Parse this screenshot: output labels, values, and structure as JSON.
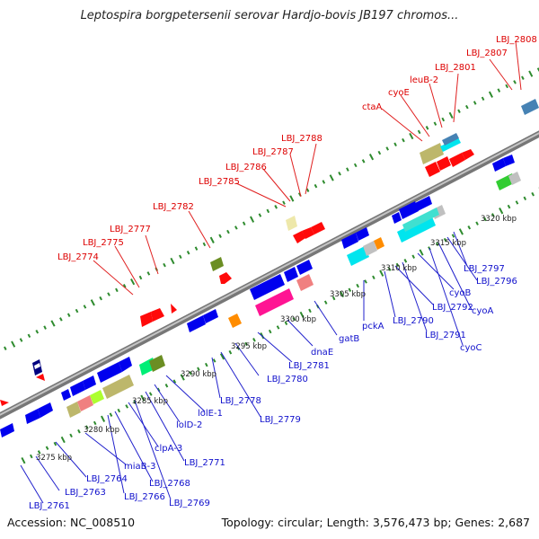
{
  "title": "Leptospira borgpetersenii serovar Hardjo-bovis JB197 chromos...",
  "footer": {
    "accession": "Accession: NC_008510",
    "summary": "Topology: circular; Length: 3,576,473 bp; Genes: 2,687"
  },
  "colors": {
    "forward_label": "#dd0000",
    "reverse_label": "#0000cc",
    "backbone": "#888888",
    "tick": "#2e8b2e"
  },
  "kbp_labels": [
    "3275 kbp",
    "3280 kbp",
    "3285 kbp",
    "3290 kbp",
    "3295 kbp",
    "3300 kbp",
    "3305 kbp",
    "3310 kbp",
    "3315 kbp",
    "3320 kbp"
  ],
  "forward_labels": [
    "LBJ_2774",
    "LBJ_2775",
    "LBJ_2777",
    "LBJ_2782",
    "LBJ_2785",
    "LBJ_2786",
    "LBJ_2787",
    "LBJ_2788",
    "ctaA",
    "cyoE",
    "leuB-2",
    "LBJ_2801",
    "LBJ_2807",
    "LBJ_2808"
  ],
  "reverse_labels": [
    "LBJ_2761",
    "LBJ_2763",
    "LBJ_2764",
    "miaB-3",
    "LBJ_2766",
    "LBJ_2768",
    "clpA-3",
    "LBJ_2769",
    "LBJ_2771",
    "lolD-2",
    "lolE-1",
    "LBJ_2778",
    "LBJ_2779",
    "LBJ_2780",
    "LBJ_2781",
    "dnaE",
    "gatB",
    "pckA",
    "LBJ_2790",
    "LBJ_2791",
    "LBJ_2792",
    "cyoB",
    "cyoC",
    "cyoA",
    "LBJ_2796",
    "LBJ_2797"
  ]
}
